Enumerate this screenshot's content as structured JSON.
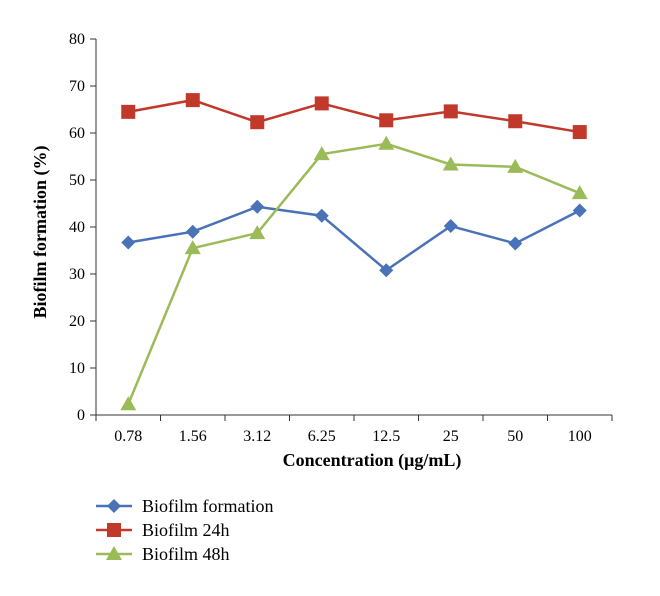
{
  "chart_data": {
    "type": "line",
    "categories": [
      "0.78",
      "1.56",
      "3.12",
      "6.25",
      "12.5",
      "25",
      "50",
      "100"
    ],
    "series": [
      {
        "name": "Biofilm formation",
        "color": "#4a72b8",
        "marker": "diamond",
        "values": [
          36.7,
          39.0,
          44.3,
          42.4,
          30.8,
          40.2,
          36.5,
          43.5
        ]
      },
      {
        "name": "Biofilm 24h",
        "color": "#c0392b",
        "marker": "square",
        "values": [
          64.5,
          67.0,
          62.3,
          66.3,
          62.7,
          64.6,
          62.5,
          60.2
        ]
      },
      {
        "name": "Biofilm 48h",
        "color": "#9bbb59",
        "marker": "triangle",
        "values": [
          2.3,
          35.5,
          38.7,
          55.5,
          57.7,
          53.3,
          52.8,
          47.2
        ]
      }
    ],
    "ylabel": "Biofilm formation (%)",
    "xlabel": "Concentration (μg/mL)",
    "ylim": [
      0,
      80
    ],
    "yticks": [
      0,
      10,
      20,
      30,
      40,
      50,
      60,
      70,
      80
    ],
    "grid": false,
    "legend_position": "bottom-left"
  }
}
